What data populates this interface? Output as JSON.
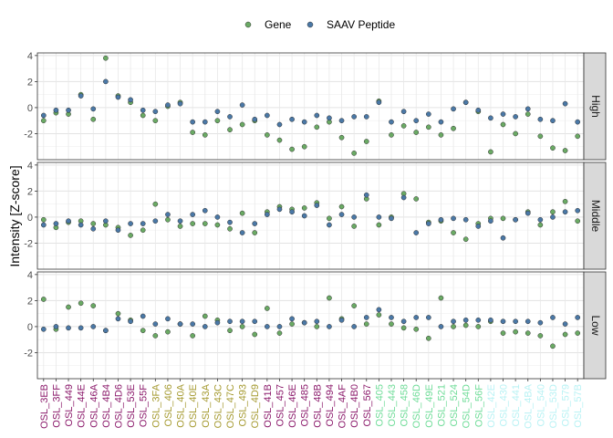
{
  "chart_data": {
    "type": "scatter",
    "ylabel": "Intensity [Z-score]",
    "xlabel": "",
    "legend": {
      "position": "top",
      "items": [
        {
          "name": "Gene",
          "color": "#6aaa64"
        },
        {
          "name": "SAAV Peptide",
          "color": "#4a78a6"
        }
      ]
    },
    "ylim": [
      -4,
      4.2
    ],
    "yticks": [
      "4",
      "2",
      "0",
      "-2"
    ],
    "ytick_values": [
      4,
      2,
      0,
      -2
    ],
    "grid": true,
    "categories": [
      "OSL_3EB",
      "OSL_3FF",
      "OSL_449",
      "OSL_44E",
      "OSL_46A",
      "OSL_4B4",
      "OSL_4D6",
      "OSL_53E",
      "OSL_55F",
      "OSL_3FA",
      "OSL_406",
      "OSL_40A",
      "OSL_40E",
      "OSL_43A",
      "OSL_43C",
      "OSL_47C",
      "OSL_493",
      "OSL_4D9",
      "OSL_41B",
      "OSL_457",
      "OSL_46E",
      "OSL_485",
      "OSL_48B",
      "OSL_494",
      "OSL_4AF",
      "OSL_4B0",
      "OSL_567",
      "OSL_405",
      "OSL_443",
      "OSL_458",
      "OSL_46D",
      "OSL_49E",
      "OSL_521",
      "OSL_524",
      "OSL_54D",
      "OSL_56F",
      "OSL_42E",
      "OSL_430",
      "OSL_441",
      "OSL_4BA",
      "OSL_540",
      "OSL_53D",
      "OSL_579",
      "OSL_57B"
    ],
    "category_colors": [
      "#8b1a6b",
      "#8b1a6b",
      "#8b1a6b",
      "#8b1a6b",
      "#8b1a6b",
      "#8b1a6b",
      "#8b1a6b",
      "#8b1a6b",
      "#8b1a6b",
      "#a59a30",
      "#a59a30",
      "#a59a30",
      "#a59a30",
      "#a59a30",
      "#a59a30",
      "#a59a30",
      "#a59a30",
      "#a59a30",
      "#8b1a6b",
      "#8b1a6b",
      "#8b1a6b",
      "#8b1a6b",
      "#8b1a6b",
      "#8b1a6b",
      "#8b1a6b",
      "#8b1a6b",
      "#8b1a6b",
      "#6fdc98",
      "#6fdc98",
      "#6fdc98",
      "#6fdc98",
      "#6fdc98",
      "#6fdc98",
      "#6fdc98",
      "#6fdc98",
      "#6fdc98",
      "#b8f2f4",
      "#b8f2f4",
      "#b8f2f4",
      "#b8f2f4",
      "#b8f2f4",
      "#b8f2f4",
      "#b8f2f4",
      "#b8f2f4"
    ],
    "panels": [
      {
        "label": "High",
        "series": [
          {
            "name": "Gene",
            "values": [
              -1.0,
              -0.4,
              -0.5,
              1.0,
              -0.9,
              3.8,
              0.9,
              0.4,
              -0.6,
              -1.0,
              0.1,
              0.4,
              -1.9,
              -2.1,
              -1.0,
              -1.7,
              -1.3,
              -1.0,
              -2.1,
              -2.5,
              -3.2,
              -3.0,
              -1.5,
              -1.1,
              -2.3,
              -3.5,
              -2.6,
              0.5,
              -2.1,
              -1.4,
              -1.9,
              -1.5,
              -2.1,
              -1.6,
              0.4,
              -0.3,
              -3.4,
              -1.3,
              -2.0,
              -0.5,
              -2.2,
              -3.1,
              -3.3,
              -2.2
            ]
          },
          {
            "name": "SAAV Peptide",
            "values": [
              -0.6,
              -0.2,
              -0.2,
              0.9,
              -0.1,
              2.0,
              0.8,
              0.6,
              -0.2,
              -0.3,
              0.2,
              0.3,
              -1.1,
              -1.1,
              -0.3,
              -0.7,
              0.2,
              -0.9,
              -0.6,
              -1.3,
              -0.9,
              -1.1,
              -0.6,
              -0.8,
              -1.0,
              -0.7,
              -0.7,
              0.4,
              -1.1,
              -0.3,
              -1.0,
              -0.5,
              -1.1,
              -0.1,
              0.4,
              -0.2,
              -0.8,
              -0.5,
              -0.7,
              -0.1,
              -0.9,
              -1.0,
              0.3,
              -1.1
            ]
          }
        ]
      },
      {
        "label": "Middle",
        "series": [
          {
            "name": "Gene",
            "values": [
              -0.2,
              -0.8,
              -0.4,
              -0.3,
              -0.5,
              -0.6,
              -0.8,
              -1.4,
              -1.0,
              1.0,
              -0.2,
              -0.7,
              -0.5,
              -0.5,
              -0.6,
              -0.9,
              0.3,
              -1.2,
              0.4,
              0.8,
              0.6,
              0.7,
              1.1,
              -0.1,
              0.8,
              -0.7,
              1.4,
              -0.6,
              0.0,
              1.8,
              1.4,
              -0.4,
              -0.3,
              -1.2,
              -1.7,
              -0.5,
              -0.1,
              -0.1,
              -0.2,
              0.4,
              -0.6,
              0.4,
              1.2,
              -0.3
            ]
          },
          {
            "name": "SAAV Peptide",
            "values": [
              -0.6,
              -0.5,
              -0.3,
              -0.6,
              -0.9,
              -0.3,
              -1.0,
              -0.5,
              -0.5,
              -0.3,
              0.2,
              -0.3,
              0.2,
              0.5,
              0.0,
              -0.4,
              -1.2,
              -0.5,
              0.2,
              0.6,
              0.4,
              0.1,
              0.9,
              -0.6,
              0.2,
              0.0,
              1.7,
              0.0,
              -0.1,
              1.5,
              -1.2,
              -0.5,
              -0.2,
              -0.1,
              -0.2,
              -0.7,
              -0.3,
              -1.6,
              -0.2,
              0.3,
              -0.2,
              0.0,
              0.4,
              0.5
            ]
          }
        ]
      },
      {
        "label": "Low",
        "series": [
          {
            "name": "Gene",
            "values": [
              2.1,
              -0.2,
              1.5,
              1.8,
              1.6,
              -0.3,
              1.0,
              0.5,
              -0.3,
              -0.7,
              -0.4,
              0.2,
              -0.7,
              0.8,
              0.5,
              -0.3,
              0.0,
              -0.6,
              1.4,
              -0.5,
              0.2,
              0.3,
              0.0,
              2.2,
              0.6,
              1.6,
              0.2,
              0.9,
              0.2,
              -0.1,
              -0.2,
              -0.9,
              2.2,
              0.0,
              0.1,
              0.0,
              0.4,
              -0.5,
              -0.4,
              -0.5,
              -0.7,
              -1.5,
              -0.6,
              -0.5
            ]
          },
          {
            "name": "SAAV Peptide",
            "values": [
              -0.2,
              0.0,
              -0.1,
              -0.1,
              0.0,
              -0.3,
              0.6,
              0.4,
              0.8,
              0.2,
              0.6,
              0.2,
              0.2,
              0.0,
              0.3,
              0.4,
              0.4,
              0.4,
              0.0,
              0.0,
              0.6,
              0.3,
              0.4,
              0.0,
              0.5,
              0.0,
              0.7,
              1.3,
              0.7,
              0.4,
              0.7,
              0.7,
              0.0,
              0.4,
              0.5,
              0.5,
              0.5,
              0.4,
              0.4,
              0.4,
              0.3,
              0.7,
              0.2,
              0.7
            ]
          }
        ]
      }
    ]
  }
}
